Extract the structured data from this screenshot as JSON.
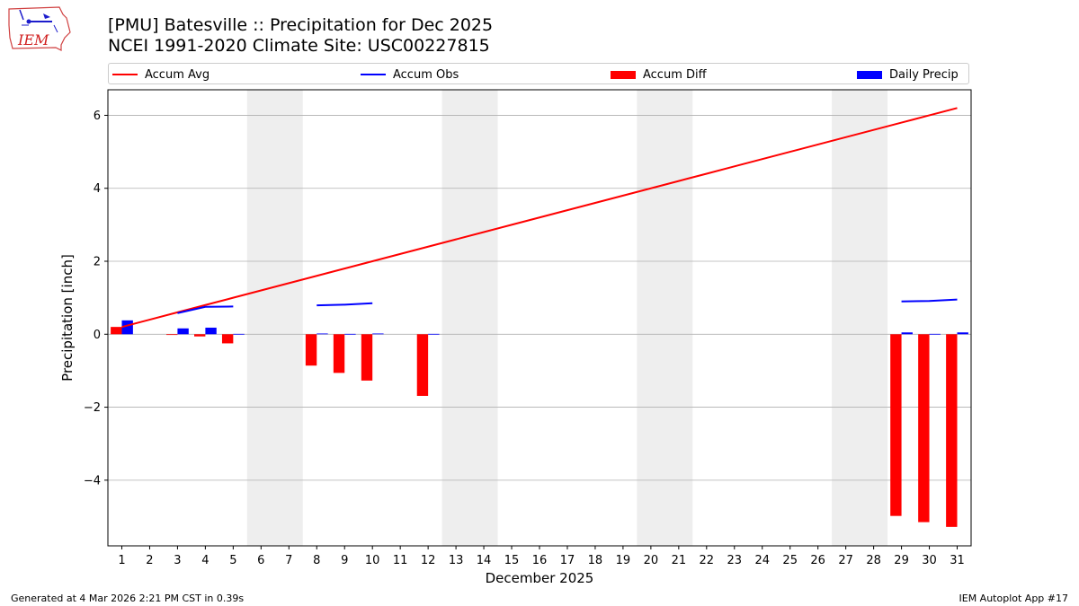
{
  "header": {
    "title": "[PMU] Batesville :: Precipitation for Dec 2025",
    "subtitle": "NCEI 1991-2020 Climate Site: USC00227815"
  },
  "logo": {
    "icon": "iem-logo-icon",
    "text": "IEM"
  },
  "footer": {
    "left": "Generated at 4 Mar 2026 2:21 PM CST in 0.39s",
    "right": "IEM Autoplot App #17"
  },
  "chart_data": {
    "type": "bar",
    "xlabel": "December 2025",
    "ylabel": "Precipitation [inch]",
    "xlim": [
      0.5,
      31.5
    ],
    "ylim": [
      -5.8,
      6.7
    ],
    "yticks": [
      -4,
      -2,
      0,
      2,
      4,
      6
    ],
    "ytick_labels": [
      "−4",
      "−2",
      "0",
      "2",
      "4",
      "6"
    ],
    "x": [
      1,
      2,
      3,
      4,
      5,
      6,
      7,
      8,
      9,
      10,
      11,
      12,
      13,
      14,
      15,
      16,
      17,
      18,
      19,
      20,
      21,
      22,
      23,
      24,
      25,
      26,
      27,
      28,
      29,
      30,
      31
    ],
    "grid": "horizontal",
    "legend_position": "top",
    "weekend_shading": [
      [
        5.5,
        7.5
      ],
      [
        12.5,
        14.5
      ],
      [
        19.5,
        21.5
      ],
      [
        26.5,
        28.5
      ]
    ],
    "colors": {
      "accum_avg": "#ff0000",
      "accum_obs": "#0000ff",
      "accum_diff": "#ff0000",
      "daily_precip": "#0000ff",
      "weekend": "#eeeeee"
    },
    "series": [
      {
        "name": "Accum Avg",
        "kind": "line",
        "values": [
          0.2,
          0.4,
          0.6,
          0.8,
          1.0,
          1.2,
          1.4,
          1.6,
          1.8,
          2.0,
          2.2,
          2.4,
          2.6,
          2.8,
          3.0,
          3.2,
          3.4,
          3.6,
          3.8,
          4.0,
          4.2,
          4.4,
          4.6,
          4.8,
          5.0,
          5.2,
          5.4,
          5.6,
          5.8,
          6.0,
          6.2
        ]
      },
      {
        "name": "Accum Obs",
        "kind": "line",
        "segments": [
          {
            "x": [
              3,
              4,
              5
            ],
            "values": [
              0.58,
              0.75,
              0.76
            ]
          },
          {
            "x": [
              8,
              9,
              10
            ],
            "values": [
              0.79,
              0.81,
              0.85
            ]
          },
          {
            "x": [
              29,
              30,
              31
            ],
            "values": [
              0.9,
              0.91,
              0.95
            ]
          }
        ]
      },
      {
        "name": "Accum Diff",
        "kind": "bar",
        "values": [
          0.2,
          null,
          -0.01,
          -0.06,
          -0.25,
          null,
          null,
          -0.86,
          -1.06,
          -1.27,
          null,
          -1.69,
          null,
          null,
          null,
          null,
          null,
          null,
          null,
          null,
          null,
          null,
          null,
          null,
          null,
          null,
          null,
          null,
          -4.98,
          -5.15,
          -5.28
        ]
      },
      {
        "name": "Daily Precip",
        "kind": "bar",
        "values": [
          0.38,
          null,
          0.16,
          0.18,
          0.01,
          null,
          null,
          0.02,
          0.01,
          0.02,
          null,
          0.01,
          null,
          null,
          null,
          null,
          null,
          null,
          null,
          null,
          null,
          null,
          null,
          null,
          null,
          null,
          null,
          null,
          0.05,
          0.01,
          0.05
        ]
      }
    ]
  }
}
